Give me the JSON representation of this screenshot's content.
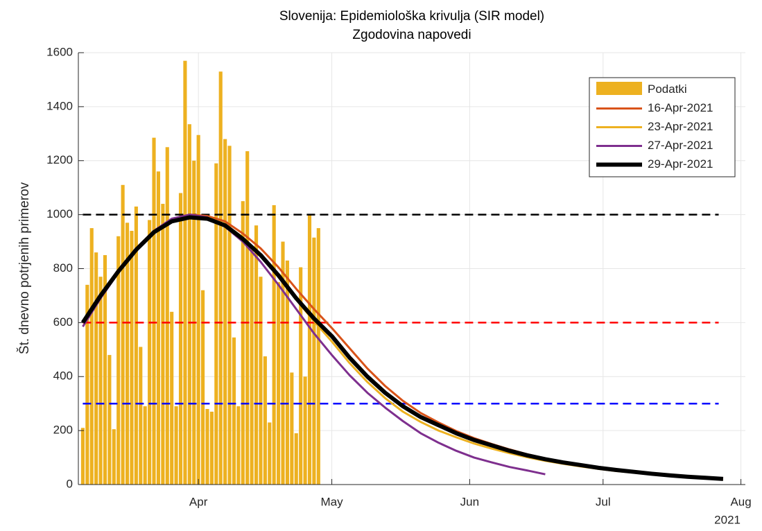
{
  "chart_data": {
    "type": "combo",
    "title": "Slovenija: Epidemiološka krivulja (SIR model)",
    "subtitle": "Zgodovina napovedi",
    "y_label": "Št. dnevno potrjenih primerov",
    "x_secondary_label": "2021",
    "xlim": [
      64,
      214
    ],
    "xticks": [
      {
        "value": 91,
        "label": "Apr"
      },
      {
        "value": 121,
        "label": "May"
      },
      {
        "value": 152,
        "label": "Jun"
      },
      {
        "value": 182,
        "label": "Jul"
      },
      {
        "value": 213,
        "label": "Aug"
      }
    ],
    "ylim": [
      0,
      1600
    ],
    "yticks": [
      0,
      200,
      400,
      600,
      800,
      1000,
      1200,
      1400,
      1600
    ],
    "grid": true,
    "legend": "northeast",
    "bars": {
      "name": "Podatki",
      "color": "#EDB120",
      "x": [
        65,
        66,
        67,
        68,
        69,
        70,
        71,
        72,
        73,
        74,
        75,
        76,
        77,
        78,
        79,
        80,
        81,
        82,
        83,
        84,
        85,
        86,
        87,
        88,
        89,
        90,
        91,
        92,
        93,
        94,
        95,
        96,
        97,
        98,
        99,
        100,
        101,
        102,
        103,
        104,
        105,
        106,
        107,
        108,
        109,
        110,
        111,
        112,
        113,
        114,
        115,
        116,
        117,
        118
      ],
      "values": [
        210,
        740,
        950,
        860,
        770,
        850,
        480,
        205,
        920,
        1110,
        970,
        940,
        1030,
        510,
        290,
        980,
        1285,
        1160,
        1040,
        1250,
        640,
        290,
        1080,
        1570,
        1335,
        1200,
        1295,
        720,
        280,
        270,
        1190,
        1530,
        1280,
        1255,
        545,
        290,
        1050,
        1235,
        870,
        960,
        770,
        475,
        230,
        1035,
        750,
        900,
        830,
        415,
        190,
        805,
        400,
        1000,
        915,
        950
      ]
    },
    "x": [
      65,
      69,
      73,
      77,
      81,
      85,
      89,
      93,
      97,
      101,
      105,
      109,
      113,
      117,
      121,
      125,
      129,
      133,
      137,
      141,
      145,
      149,
      153,
      157,
      161,
      165,
      169,
      173,
      177,
      181,
      185,
      189,
      193,
      197,
      201,
      205,
      209
    ],
    "series": [
      {
        "name": "16-Apr-2021",
        "color": "#D95319",
        "width": 3,
        "values": [
          605,
          705,
          795,
          875,
          940,
          980,
          1000,
          995,
          975,
          930,
          875,
          805,
          725,
          650,
          580,
          505,
          430,
          365,
          310,
          265,
          230,
          198,
          172,
          150,
          130,
          112,
          97,
          84,
          73,
          63,
          55,
          47,
          40,
          34,
          29,
          25,
          21
        ]
      },
      {
        "name": "23-Apr-2021",
        "color": "#EDB120",
        "width": 3,
        "values": [
          600,
          700,
          790,
          870,
          935,
          975,
          995,
          990,
          965,
          915,
          850,
          770,
          685,
          605,
          530,
          450,
          380,
          320,
          270,
          232,
          200,
          175,
          152,
          133,
          116,
          101,
          88,
          77,
          67,
          58,
          50,
          44,
          38,
          32,
          27,
          23,
          20
        ]
      },
      {
        "name": "27-Apr-2021",
        "color": "#7E2F8E",
        "width": 3,
        "values": [
          585,
          690,
          785,
          870,
          940,
          985,
          1000,
          990,
          955,
          900,
          825,
          740,
          650,
          560,
          480,
          405,
          340,
          285,
          235,
          190,
          155,
          125,
          100,
          82,
          65,
          52,
          38,
          null,
          null,
          null,
          null,
          null,
          null,
          null,
          null,
          null,
          null
        ]
      },
      {
        "name": "29-Apr-2021",
        "color": "#000000",
        "width": 6,
        "values": [
          600,
          700,
          790,
          870,
          935,
          975,
          990,
          985,
          960,
          910,
          850,
          775,
          690,
          615,
          550,
          470,
          400,
          340,
          290,
          250,
          220,
          190,
          165,
          145,
          125,
          108,
          94,
          82,
          72,
          62,
          54,
          47,
          40,
          34,
          29,
          25,
          21
        ]
      }
    ],
    "reference_lines": [
      {
        "value": 1000,
        "color": "#000000",
        "xlim": [
          65,
          208
        ]
      },
      {
        "value": 600,
        "color": "#FF0000",
        "xlim": [
          65,
          208
        ]
      },
      {
        "value": 300,
        "color": "#0000FF",
        "xlim": [
          65,
          208
        ]
      }
    ]
  }
}
